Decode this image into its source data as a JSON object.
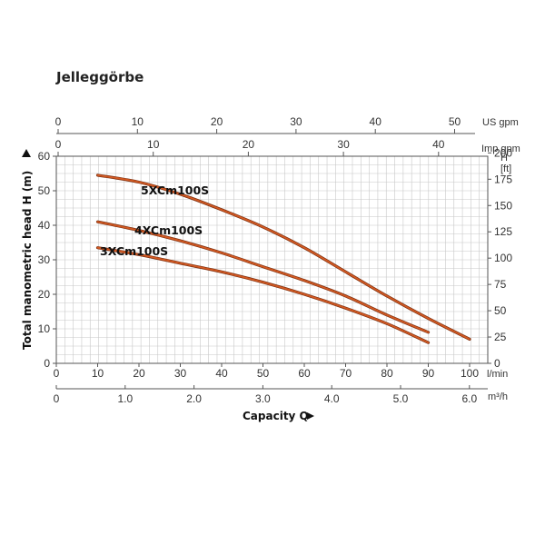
{
  "title": "Jelleggörbe",
  "chart_data": {
    "type": "line",
    "title": "Jelleggörbe",
    "ylabel": "Total manometric head H (m)",
    "xlabel": "Capacity Q",
    "axes": {
      "lmin": {
        "unit": "l/min",
        "range": [
          0,
          100
        ],
        "ticks": [
          0,
          10,
          20,
          30,
          40,
          50,
          60,
          70,
          80,
          90,
          100
        ]
      },
      "m3h": {
        "unit": "m³/h",
        "range": [
          0,
          6.0
        ],
        "ticks": [
          "0",
          "1.0",
          "2.0",
          "3.0",
          "4.0",
          "5.0",
          "6.0"
        ]
      },
      "us_gpm": {
        "unit": "US gpm",
        "ticks": [
          0,
          10,
          20,
          30,
          40,
          50
        ]
      },
      "imp_gpm": {
        "unit": "Imp gpm",
        "ticks": [
          0,
          10,
          20,
          30,
          40
        ]
      },
      "head_m": {
        "unit": "m",
        "range": [
          0,
          60
        ],
        "ticks": [
          0,
          10,
          20,
          30,
          40,
          50,
          60
        ]
      },
      "head_ft": {
        "unit": "[ft]",
        "label": "H",
        "ticks": [
          0,
          25,
          50,
          75,
          100,
          125,
          150,
          175,
          200
        ]
      }
    },
    "grid": true,
    "line_color": "#d35a23",
    "series": [
      {
        "name": "5XCm100S",
        "x": [
          10,
          20,
          30,
          40,
          50,
          60,
          70,
          80,
          90,
          100
        ],
        "y": [
          54.5,
          52.5,
          49,
          44.5,
          39.5,
          33.5,
          26.5,
          19.5,
          13,
          7
        ]
      },
      {
        "name": "4XCm100S",
        "x": [
          10,
          20,
          30,
          40,
          50,
          60,
          70,
          80,
          90
        ],
        "y": [
          41,
          38.5,
          35.5,
          32,
          28,
          24,
          19.5,
          14,
          9
        ]
      },
      {
        "name": "3XCm100S",
        "x": [
          10,
          20,
          30,
          40,
          50,
          60,
          70,
          80,
          90
        ],
        "y": [
          33.5,
          31.5,
          29,
          26.5,
          23.5,
          20,
          16,
          11.5,
          6
        ]
      }
    ]
  }
}
